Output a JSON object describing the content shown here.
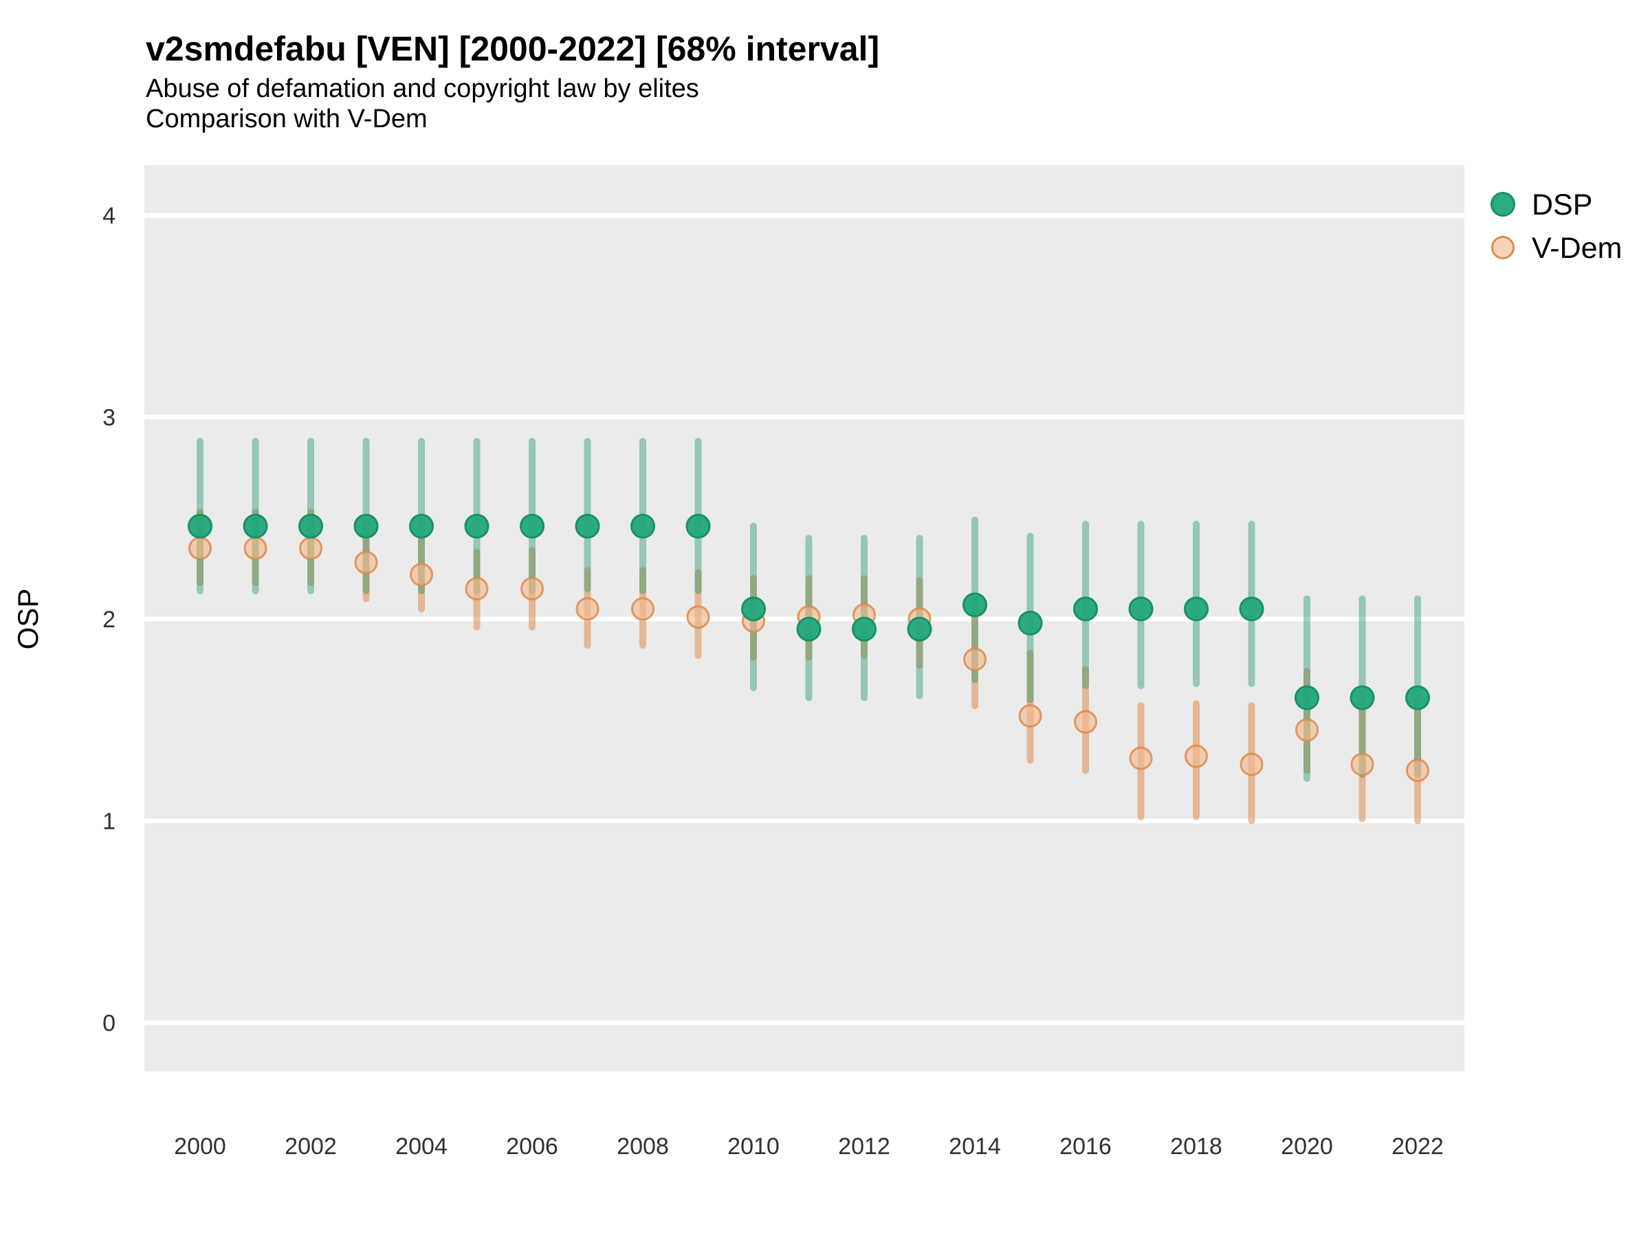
{
  "header": {
    "title": "v2smdefabu [VEN] [2000-2022] [68% interval]",
    "subtitle": "Abuse of defamation and copyright law by elites",
    "subtitle2": "Comparison with V-Dem"
  },
  "legend": {
    "position": "right-top",
    "items": [
      {
        "label": "DSP",
        "marker": "filled-circle",
        "color": "#1fa579"
      },
      {
        "label": "V-Dem",
        "marker": "filled-circle",
        "color": "#f2b98c"
      }
    ]
  },
  "axes": {
    "ylabel": "OSP",
    "yticks": [
      0,
      1,
      2,
      3,
      4
    ],
    "xticks": [
      2000,
      2002,
      2004,
      2006,
      2008,
      2010,
      2012,
      2014,
      2016,
      2018,
      2020,
      2022
    ]
  },
  "colors": {
    "panel_bg": "#ebebeb",
    "gridline": "#ffffff",
    "dsp_point_fill": "#22a67b",
    "dsp_point_stroke": "#17916a",
    "dsp_interval": "rgba(30,150,105,0.42)",
    "vdem_point_fill": "#f2b98c",
    "vdem_point_stroke": "#dd8a4e",
    "vdem_interval": "rgba(221,130,60,0.5)",
    "tick_text": "#303030",
    "title_text": "#000000"
  },
  "chart_data": {
    "type": "scatter",
    "subtype": "pointrange-comparison",
    "title": "v2smdefabu [VEN] [2000-2022] [68% interval]",
    "xlabel": "",
    "ylabel": "OSP",
    "x": [
      2000,
      2001,
      2002,
      2003,
      2004,
      2005,
      2006,
      2007,
      2008,
      2009,
      2010,
      2011,
      2012,
      2013,
      2014,
      2015,
      2016,
      2017,
      2018,
      2019,
      2020,
      2021,
      2022
    ],
    "xlim": [
      1999,
      2023
    ],
    "ylim": [
      -0.26,
      4.25
    ],
    "grid": "major-horizontal-only",
    "interval_level": "68%",
    "legend_position": "right-top",
    "series": [
      {
        "name": "DSP",
        "values": [
          2.46,
          2.46,
          2.46,
          2.46,
          2.46,
          2.46,
          2.46,
          2.46,
          2.46,
          2.46,
          2.05,
          1.95,
          1.95,
          1.95,
          2.07,
          1.98,
          2.05,
          2.05,
          2.05,
          2.05,
          1.61,
          1.61,
          1.61
        ],
        "lo": [
          2.14,
          2.14,
          2.14,
          2.14,
          2.14,
          2.14,
          2.14,
          2.15,
          2.14,
          2.14,
          1.66,
          1.61,
          1.61,
          1.62,
          1.7,
          1.6,
          1.67,
          1.67,
          1.68,
          1.68,
          1.21,
          1.23,
          1.23
        ],
        "hi": [
          2.88,
          2.88,
          2.88,
          2.88,
          2.88,
          2.88,
          2.88,
          2.88,
          2.88,
          2.88,
          2.46,
          2.4,
          2.4,
          2.4,
          2.49,
          2.41,
          2.47,
          2.47,
          2.47,
          2.47,
          2.1,
          2.1,
          2.1
        ]
      },
      {
        "name": "V-Dem",
        "values": [
          2.35,
          2.35,
          2.35,
          2.28,
          2.22,
          2.15,
          2.15,
          2.05,
          2.05,
          2.01,
          1.99,
          2.01,
          2.02,
          2.0,
          1.8,
          1.52,
          1.49,
          1.31,
          1.32,
          1.28,
          1.45,
          1.28,
          1.25
        ],
        "lo": [
          2.18,
          2.18,
          2.18,
          2.1,
          2.05,
          1.96,
          1.96,
          1.87,
          1.87,
          1.82,
          1.81,
          1.81,
          1.82,
          1.77,
          1.57,
          1.3,
          1.25,
          1.02,
          1.02,
          1.0,
          1.25,
          1.01,
          1.0
        ],
        "hi": [
          2.53,
          2.53,
          2.53,
          2.46,
          2.4,
          2.33,
          2.34,
          2.24,
          2.24,
          2.23,
          2.2,
          2.2,
          2.2,
          2.19,
          2.01,
          1.83,
          1.75,
          1.57,
          1.58,
          1.57,
          1.74,
          1.58,
          1.57
        ]
      }
    ]
  }
}
